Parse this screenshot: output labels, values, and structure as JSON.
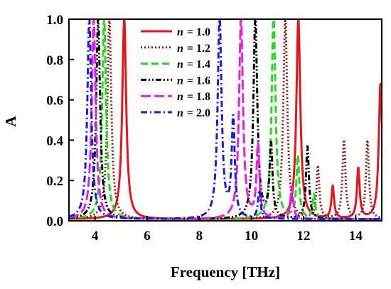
{
  "chart_data": {
    "type": "line",
    "title": "",
    "xlabel": "Frequency [THz]",
    "ylabel": "A",
    "xlim": [
      3,
      15
    ],
    "ylim": [
      0,
      1
    ],
    "xticks": [
      4,
      6,
      8,
      10,
      12,
      14
    ],
    "yticks": [
      0.0,
      0.2,
      0.4,
      0.6,
      0.8,
      1.0
    ],
    "xtick_labels": [
      "4",
      "6",
      "8",
      "10",
      "12",
      "14"
    ],
    "ytick_labels": [
      "0.0",
      "0.2",
      "0.4",
      "0.6",
      "0.8",
      "1.0"
    ],
    "grid": false,
    "legend_position": "top-center",
    "series": [
      {
        "name": "n = 1.0",
        "legend_var": "n",
        "legend_value": "= 1.0",
        "color": "#e8161b",
        "dash": "solid",
        "peaks": [
          [
            5.12,
            1.0
          ],
          [
            11.8,
            1.0
          ],
          [
            13.12,
            0.16
          ],
          [
            14.1,
            0.25
          ],
          [
            14.95,
            0.67
          ]
        ]
      },
      {
        "name": "n = 1.2",
        "legend_var": "n",
        "legend_value": "= 1.2",
        "color": "#8b1a1a",
        "dash": "dot",
        "peaks": [
          [
            4.55,
            1.0
          ],
          [
            11.3,
            1.0
          ],
          [
            12.55,
            0.26
          ],
          [
            13.55,
            0.39
          ],
          [
            14.45,
            0.39
          ]
        ]
      },
      {
        "name": "n = 1.4",
        "legend_var": "n",
        "legend_value": "= 1.4",
        "color": "#1fdc1f",
        "dash": "dash",
        "peaks": [
          [
            4.35,
            1.0
          ],
          [
            10.85,
            1.0
          ],
          [
            11.78,
            0.31
          ],
          [
            12.4,
            0.12
          ]
        ]
      },
      {
        "name": "n = 1.6",
        "legend_var": "n",
        "legend_value": "= 1.6",
        "color": "#000000",
        "dash": "dashdotdot",
        "peaks": [
          [
            4.12,
            1.0
          ],
          [
            10.15,
            1.0
          ],
          [
            10.75,
            0.37
          ],
          [
            12.15,
            0.36
          ]
        ]
      },
      {
        "name": "n = 1.8",
        "legend_var": "n",
        "legend_value": "= 1.8",
        "color": "#e61ee6",
        "dash": "longdash",
        "peaks": [
          [
            3.95,
            1.0
          ],
          [
            9.6,
            1.0
          ],
          [
            10.25,
            0.36
          ],
          [
            11.55,
            0.16
          ]
        ]
      },
      {
        "name": "n = 2.0",
        "legend_var": "n",
        "legend_value": "= 2.0",
        "color": "#1a1ae6",
        "dash": "dashdot",
        "peaks": [
          [
            3.78,
            1.0
          ],
          [
            8.78,
            1.0
          ],
          [
            9.3,
            0.49
          ],
          [
            10.3,
            0.14
          ]
        ]
      }
    ]
  }
}
